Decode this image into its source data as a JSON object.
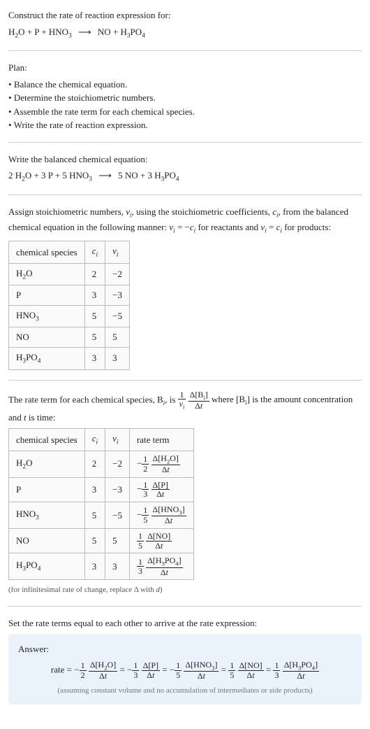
{
  "colors": {
    "text": "#222",
    "hr": "#ccc",
    "table_border": "#bbb",
    "table_bg": "#fafafa",
    "answer_bg": "#eaf2fb",
    "note": "#555"
  },
  "typography": {
    "font_family": "Georgia, Times New Roman, serif",
    "body_size_pt": 10,
    "note_size_pt": 8
  },
  "intro": {
    "title": "Construct the rate of reaction expression for:",
    "unbalanced_eqn_html": "H<span class='sub'>2</span>O + P + HNO<span class='sub'>3</span> <span class='arrow'>⟶</span> NO + H<span class='sub'>3</span>PO<span class='sub'>4</span>"
  },
  "plan": {
    "head": "Plan:",
    "items": [
      "Balance the chemical equation.",
      "Determine the stoichiometric numbers.",
      "Assemble the rate term for each chemical species.",
      "Write the rate of reaction expression."
    ]
  },
  "balanced": {
    "head": "Write the balanced chemical equation:",
    "eqn_html": "2 H<span class='sub'>2</span>O + 3 P + 5 HNO<span class='sub'>3</span> <span class='arrow'>⟶</span> 5 NO + 3 H<span class='sub'>3</span>PO<span class='sub'>4</span>"
  },
  "stoich": {
    "intro_html": "Assign stoichiometric numbers, <span class='ital'>ν<span class='sub'>i</span></span>, using the stoichiometric coefficients, <span class='ital'>c<span class='sub'>i</span></span>, from the balanced chemical equation in the following manner: <span class='ital'>ν<span class='sub'>i</span></span> = −<span class='ital'>c<span class='sub'>i</span></span> for reactants and <span class='ital'>ν<span class='sub'>i</span></span> = <span class='ital'>c<span class='sub'>i</span></span> for products:",
    "table": {
      "headers": [
        "chemical species",
        "c_i",
        "ν_i"
      ],
      "headers_html": [
        "chemical species",
        "<span class='ital'>c<span class='sub'>i</span></span>",
        "<span class='ital'>ν<span class='sub'>i</span></span>"
      ],
      "rows": [
        {
          "species_html": "H<span class='sub'>2</span>O",
          "c": 2,
          "nu": -2
        },
        {
          "species_html": "P",
          "c": 3,
          "nu": -3
        },
        {
          "species_html": "HNO<span class='sub'>3</span>",
          "c": 5,
          "nu": -5
        },
        {
          "species_html": "NO",
          "c": 5,
          "nu": 5
        },
        {
          "species_html": "H<span class='sub'>3</span>PO<span class='sub'>4</span>",
          "c": 3,
          "nu": 3
        }
      ]
    }
  },
  "rate_terms": {
    "intro_pre": "The rate term for each chemical species, B",
    "intro_mid": ", is ",
    "intro_post_html": " where [B<span class='sub ital'>i</span>] is the amount concentration and <span class='ital'>t</span> is time:",
    "rate_defn_frac1": {
      "num_html": "1",
      "den_html": "<span class='ital'>ν<span class='sub'>i</span></span>"
    },
    "rate_defn_frac2": {
      "num_html": "Δ[B<span class='sub ital'>i</span>]",
      "den_html": "Δ<span class='ital'>t</span>"
    },
    "table": {
      "headers_html": [
        "chemical species",
        "<span class='ital'>c<span class='sub'>i</span></span>",
        "<span class='ital'>ν<span class='sub'>i</span></span>",
        "rate term"
      ],
      "rows": [
        {
          "species_html": "H<span class='sub'>2</span>O",
          "c": 2,
          "nu": -2,
          "sign": "−",
          "coef_num": "1",
          "coef_den": "2",
          "conc": "Δ[H<span class='sub'>2</span>O]"
        },
        {
          "species_html": "P",
          "c": 3,
          "nu": -3,
          "sign": "−",
          "coef_num": "1",
          "coef_den": "3",
          "conc": "Δ[P]"
        },
        {
          "species_html": "HNO<span class='sub'>3</span>",
          "c": 5,
          "nu": -5,
          "sign": "−",
          "coef_num": "1",
          "coef_den": "5",
          "conc": "Δ[HNO<span class='sub'>3</span>]"
        },
        {
          "species_html": "NO",
          "c": 5,
          "nu": 5,
          "sign": "",
          "coef_num": "1",
          "coef_den": "5",
          "conc": "Δ[NO]"
        },
        {
          "species_html": "H<span class='sub'>3</span>PO<span class='sub'>4</span>",
          "c": 3,
          "nu": 3,
          "sign": "",
          "coef_num": "1",
          "coef_den": "3",
          "conc": "Δ[H<span class='sub'>3</span>PO<span class='sub'>4</span>]"
        }
      ]
    },
    "footnote_html": "(for infinitesimal rate of change, replace Δ with <span class='ital'>d</span>)"
  },
  "final": {
    "head": "Set the rate terms equal to each other to arrive at the rate expression:",
    "answer_label": "Answer:",
    "rate_label": "rate",
    "terms": [
      {
        "sign": "−",
        "coef_num": "1",
        "coef_den": "2",
        "conc": "Δ[H<span class='sub'>2</span>O]"
      },
      {
        "sign": "−",
        "coef_num": "1",
        "coef_den": "3",
        "conc": "Δ[P]"
      },
      {
        "sign": "−",
        "coef_num": "1",
        "coef_den": "5",
        "conc": "Δ[HNO<span class='sub'>3</span>]"
      },
      {
        "sign": "",
        "coef_num": "1",
        "coef_den": "5",
        "conc": "Δ[NO]"
      },
      {
        "sign": "",
        "coef_num": "1",
        "coef_den": "3",
        "conc": "Δ[H<span class='sub'>3</span>PO<span class='sub'>4</span>]"
      }
    ],
    "dt": "Δ<span class='ital'>t</span>",
    "note": "(assuming constant volume and no accumulation of intermediates or side products)"
  }
}
